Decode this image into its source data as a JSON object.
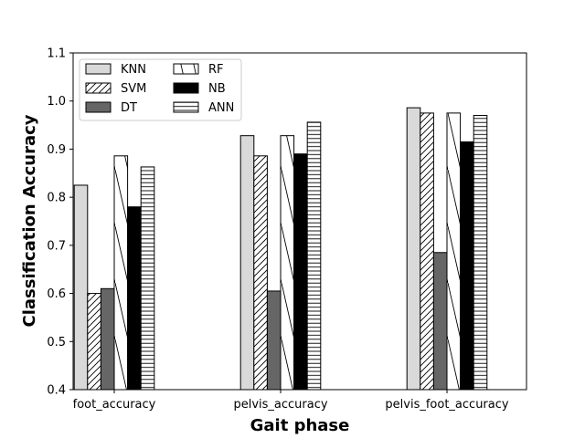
{
  "chart_data": {
    "type": "bar",
    "title": "",
    "xlabel": "Gait phase",
    "ylabel": "Classification Accuracy",
    "ylim": [
      0.4,
      1.1
    ],
    "yticks": [
      0.4,
      0.5,
      0.6,
      0.7,
      0.8,
      0.9,
      1.0,
      1.1
    ],
    "ytick_labels": [
      "0.4",
      "0.5",
      "0.6",
      "0.7",
      "0.8",
      "0.9",
      "1.0",
      "1.1"
    ],
    "categories": [
      "foot_accuracy",
      "pelvis_accuracy",
      "pelvis_foot_accuracy"
    ],
    "legend_position": "upper-left",
    "legend_columns": 2,
    "series": [
      {
        "name": "KNN",
        "values": [
          0.825,
          0.928,
          0.986
        ],
        "fill": "#d9d9d9",
        "hatch": "none"
      },
      {
        "name": "SVM",
        "values": [
          0.6,
          0.886,
          0.975
        ],
        "fill": "#ffffff",
        "hatch": "diag-fine"
      },
      {
        "name": "DT",
        "values": [
          0.61,
          0.605,
          0.685
        ],
        "fill": "#666666",
        "hatch": "none"
      },
      {
        "name": "RF",
        "values": [
          0.886,
          0.928,
          0.975
        ],
        "fill": "#ffffff",
        "hatch": "backdiag-coarse"
      },
      {
        "name": "NB",
        "values": [
          0.78,
          0.89,
          0.915
        ],
        "fill": "#000000",
        "hatch": "none"
      },
      {
        "name": "ANN",
        "values": [
          0.863,
          0.956,
          0.97
        ],
        "fill": "#ffffff",
        "hatch": "horizontal"
      }
    ]
  }
}
